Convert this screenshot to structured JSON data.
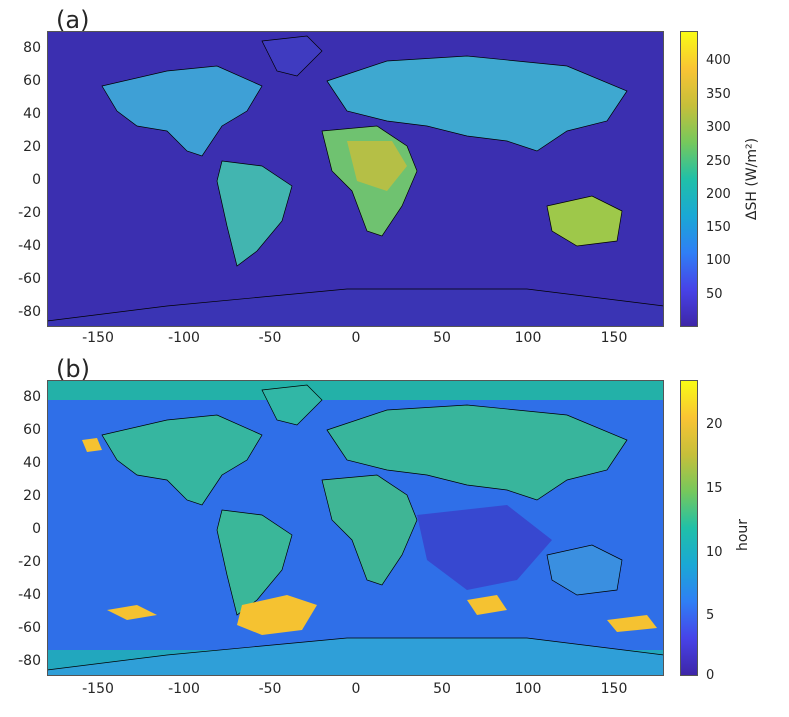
{
  "panels": [
    {
      "label": "(a)",
      "colorbar": {
        "title": "ΔSH (W/m²)",
        "ticks": [
          "400",
          "350",
          "300",
          "250",
          "200",
          "150",
          "100",
          "50"
        ]
      }
    },
    {
      "label": "(b)",
      "colorbar": {
        "title": "hour",
        "ticks": [
          "20",
          "15",
          "10",
          "5",
          "0"
        ]
      }
    }
  ],
  "axes": {
    "y_ticks": [
      "80",
      "60",
      "40",
      "20",
      "0",
      "-20",
      "-40",
      "-60",
      "-80"
    ],
    "x_ticks": [
      "-150",
      "-100",
      "-50",
      "0",
      "50",
      "100",
      "150"
    ]
  },
  "colors": {
    "ocean_a": "#3a33b5",
    "land_a": "#40a5d8",
    "ocean_b": "#2f6fe8",
    "land_b": "#35b59d",
    "hot_spots": "#f5c231"
  }
}
